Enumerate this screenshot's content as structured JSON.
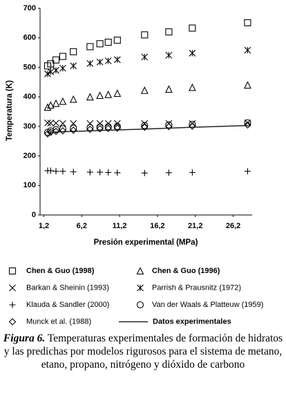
{
  "chart_data": {
    "type": "scatter",
    "x_label": "Presión experimental (MPa)",
    "y_label": "Temperatura (K)",
    "x": [
      1.7,
      2.1,
      2.8,
      3.7,
      5.1,
      7.3,
      8.6,
      9.7,
      10.9,
      14.5,
      17.7,
      20.8,
      28.1
    ],
    "xlim": [
      0.7,
      28.7
    ],
    "xticks": [
      {
        "value": 1.2,
        "label": "1,2"
      },
      {
        "value": 6.2,
        "label": "6,2"
      },
      {
        "value": 11.2,
        "label": "11,2"
      },
      {
        "value": 16.2,
        "label": "16,2"
      },
      {
        "value": 21.2,
        "label": "21,2"
      },
      {
        "value": 26.2,
        "label": "26,2"
      }
    ],
    "ylim": [
      0,
      700
    ],
    "yticks": [
      0,
      100,
      200,
      300,
      400,
      500,
      600,
      700
    ],
    "series": [
      {
        "name": "Chen & Guo (1998)",
        "marker": "square",
        "color": "#000000",
        "values": [
          505,
          512,
          525,
          537,
          553,
          570,
          580,
          585,
          592,
          610,
          620,
          633,
          651
        ]
      },
      {
        "name": "Chen & Guo (1996)",
        "marker": "triangle",
        "color": "#000000",
        "values": [
          365,
          372,
          378,
          385,
          392,
          400,
          405,
          408,
          412,
          422,
          426,
          432,
          440
        ]
      },
      {
        "name": "Barkan & Sheinin (1993)",
        "marker": "x",
        "color": "#000000",
        "values": [
          312,
          311,
          311,
          310,
          310,
          310,
          310,
          310,
          310,
          310,
          310,
          310,
          312
        ]
      },
      {
        "name": "Parrish & Prausnitz (1972)",
        "marker": "star",
        "color": "#000000",
        "values": [
          478,
          485,
          490,
          497,
          505,
          513,
          518,
          522,
          526,
          535,
          541,
          548,
          558
        ]
      },
      {
        "name": "Klauda & Sandler (2000)",
        "marker": "plus",
        "color": "#000000",
        "values": [
          150,
          150,
          148,
          148,
          146,
          145,
          145,
          144,
          143,
          142,
          143,
          144,
          148
        ]
      },
      {
        "name": "Van der Waals  & Platteuw (1959)",
        "marker": "circle",
        "color": "#000000",
        "values": [
          280,
          285,
          289,
          292,
          294,
          296,
          298,
          299,
          300,
          303,
          305,
          307,
          312
        ]
      },
      {
        "name": "Munck et al. (1988)",
        "marker": "diamond",
        "color": "#000000",
        "values": [
          275,
          280,
          283,
          285,
          287,
          290,
          292,
          293,
          294,
          297,
          299,
          301,
          305
        ]
      },
      {
        "name": "Datos experimentales",
        "marker": "line",
        "color": "#222222",
        "values": [
          279,
          280,
          281,
          282,
          283,
          285,
          286,
          287,
          288,
          291,
          294,
          297,
          303
        ]
      }
    ],
    "caption_label": "Figura 6.",
    "caption": "Temperaturas experimentales de formación de hidratos y las predichas por modelos rigurosos para el sistema de metano, etano, propano, nitrógeno y dióxido de carbono"
  }
}
